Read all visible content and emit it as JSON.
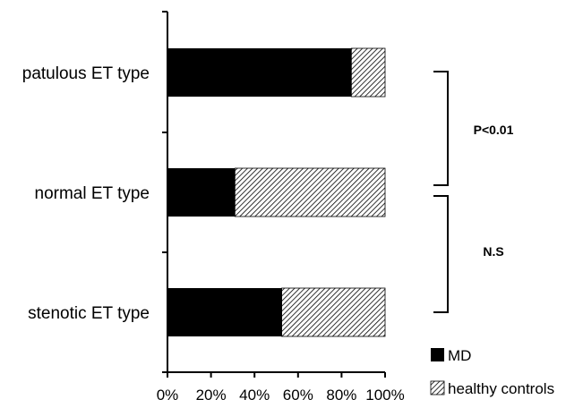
{
  "chart_data": {
    "type": "bar",
    "orientation": "horizontal",
    "stacked": true,
    "percent_scale": true,
    "categories": [
      "patulous ET type",
      "normal ET type",
      "stenotic ET type"
    ],
    "series": [
      {
        "name": "MD",
        "values": [
          84.5,
          31,
          52.5
        ],
        "fill": "solid",
        "color": "#000000"
      },
      {
        "name": "healthy controls",
        "values": [
          15.5,
          69,
          47.5
        ],
        "fill": "hatched",
        "color": "#000000"
      }
    ],
    "x_ticks": [
      "0%",
      "20%",
      "40%",
      "60%",
      "80%",
      "100%"
    ],
    "xlim": [
      0,
      100
    ],
    "grid": false,
    "legend_position": "bottom-right",
    "annotations": [
      {
        "text": "P<0.01",
        "between": [
          "patulous ET type",
          "normal ET type"
        ]
      },
      {
        "text": "N.S",
        "between": [
          "normal ET type",
          "stenotic ET type"
        ]
      }
    ]
  }
}
